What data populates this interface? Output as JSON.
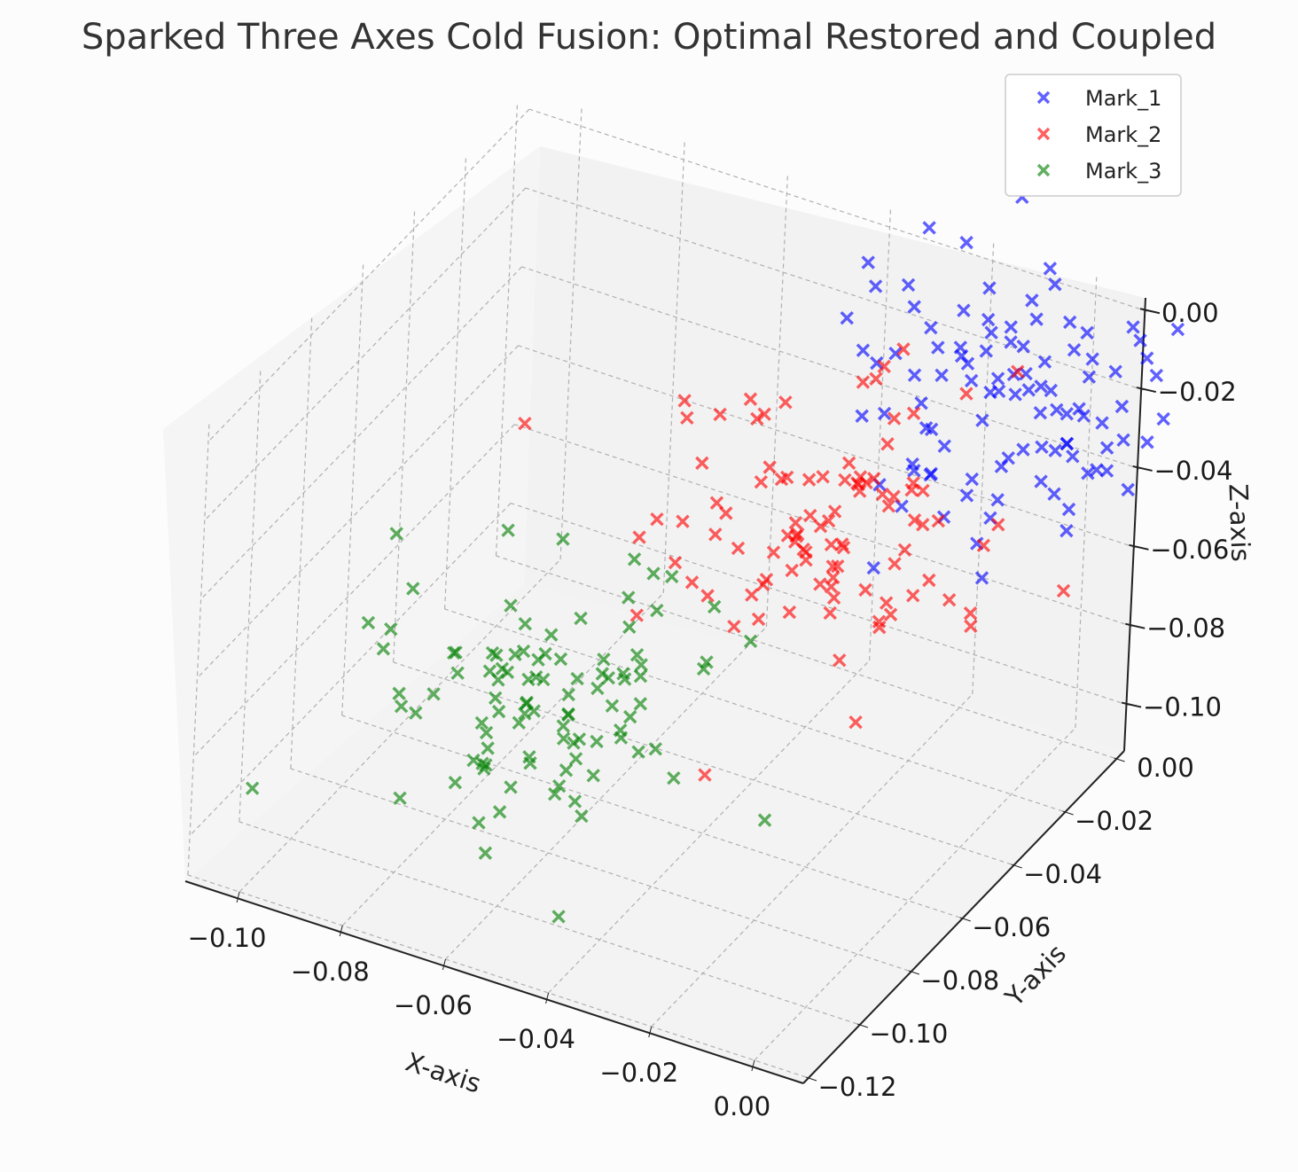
{
  "chart_data": {
    "type": "scatter",
    "title": "Sparked Three Axes Cold Fusion: Optimal Restored and Coupled",
    "xlabel": "X-axis",
    "ylabel": "Y-axis",
    "zlabel": "Z-axis",
    "xlim": [
      -0.11,
      0.01
    ],
    "ylim": [
      -0.12,
      0.005
    ],
    "zlim": [
      -0.11,
      0.005
    ],
    "x_ticks": [
      "−0.10",
      "−0.08",
      "−0.06",
      "−0.04",
      "−0.02",
      "0.00"
    ],
    "y_ticks": [
      "0.00",
      "−0.02",
      "−0.04",
      "−0.06",
      "−0.08",
      "−0.10",
      "−0.12"
    ],
    "z_ticks": [
      "0.00",
      "−0.02",
      "−0.04",
      "−0.06",
      "−0.08",
      "−0.10"
    ],
    "grid": true,
    "legend_position": "top-right",
    "series": [
      {
        "name": "Mark_1",
        "color": "#0000ff",
        "marker": "x",
        "x_center": -0.01,
        "y_center": -0.01,
        "z_center": -0.02,
        "spread": 0.015
      },
      {
        "name": "Mark_2",
        "color": "#ff0000",
        "marker": "x",
        "x_center": -0.03,
        "y_center": -0.03,
        "z_center": -0.05,
        "spread": 0.015
      },
      {
        "name": "Mark_3",
        "color": "#008000",
        "marker": "x",
        "x_center": -0.07,
        "y_center": -0.07,
        "z_center": -0.08,
        "spread": 0.015
      }
    ]
  }
}
